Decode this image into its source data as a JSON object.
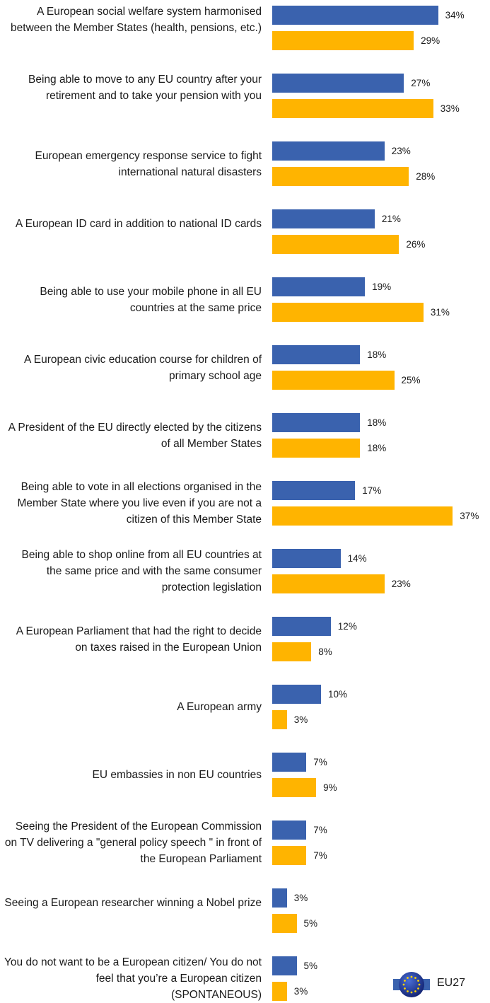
{
  "chart_data": {
    "type": "bar",
    "orientation": "horizontal",
    "categories": [
      "A European social welfare system harmonised between the Member States (health, pensions, etc.)",
      "Being able to move to any EU country after your retirement and to take your pension with you",
      "European emergency response service to fight international natural disasters",
      "A European ID card in addition to national ID cards",
      "Being able to use your mobile phone in all EU countries at the same price",
      "A European civic education course for children of primary school age",
      "A President of the EU directly elected by the citizens of all Member States",
      "Being able to vote in all elections organised in the Member State where you live even if you are not a citizen of this Member State",
      "Being able to shop online from all EU countries at the same price and with the same consumer protection legislation",
      "A European Parliament that had the right to decide on taxes raised in the European Union",
      "A European army",
      "EU embassies in non EU countries",
      "Seeing the President of the European Commission on TV delivering a \"general policy speech \" in front of the European Parliament",
      "Seeing a European researcher winning a Nobel prize",
      "You do not want to be a European citizen/ You do not feel that you’re a European citizen (SPONTANEOUS)"
    ],
    "series": [
      {
        "values": [
          34,
          27,
          23,
          21,
          19,
          18,
          18,
          17,
          14,
          12,
          10,
          7,
          7,
          3,
          5
        ],
        "color": "#3a62ae"
      },
      {
        "values": [
          29,
          33,
          28,
          26,
          31,
          25,
          18,
          37,
          23,
          8,
          3,
          9,
          7,
          5,
          3
        ],
        "color": "#ffb400"
      }
    ],
    "value_suffix": "%",
    "xlim": [
      0,
      45
    ],
    "grid": false,
    "legend": {
      "label": "EU27",
      "icon": "eu-flag-icon",
      "placement": "bottom-right"
    }
  }
}
